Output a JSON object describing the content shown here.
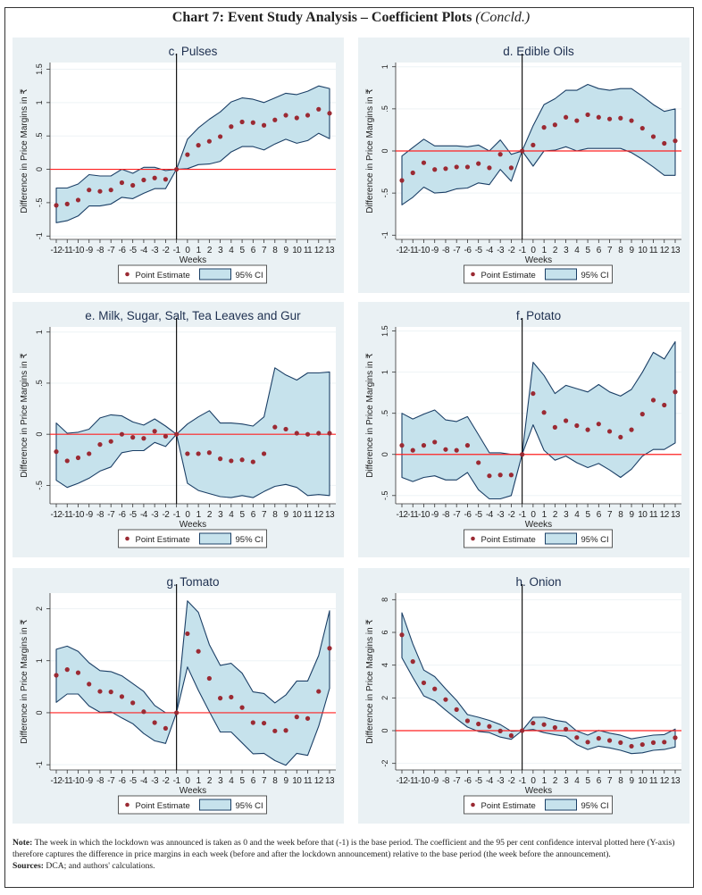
{
  "page": {
    "title": "Chart 7: Event Study Analysis – Coefficient Plots",
    "title_suffix": "(Concld.)",
    "note_label": "Note:",
    "note_text": "The week in which the lockdown was announced is taken as 0 and the week before that (-1) is the base period. The coefficient and the 95 per cent confidence interval plotted here (Y-axis) therefore captures the difference in price margins in each week (before and after the lockdown announcement) relative to the base period (the week before the announcement).",
    "sources_label": "Sources:",
    "sources_text": "DCA; and authors' calculations."
  },
  "colors": {
    "panel_bg": "#eaf1f4",
    "ci_fill": "#c6e2ec",
    "ci_line": "#1b3f66",
    "point": "#9b2a33",
    "zero_line": "#ff2020",
    "event_line": "#000000"
  },
  "chart_data": [
    {
      "type": "scatter",
      "title": "c. Pulses",
      "xlabel": "Weeks",
      "ylabel": "Difference in Price Margins in ₹",
      "x": [
        -12,
        -11,
        -10,
        -9,
        -8,
        -7,
        -6,
        -5,
        -4,
        -3,
        -2,
        -1,
        0,
        1,
        2,
        3,
        4,
        5,
        6,
        7,
        8,
        9,
        10,
        11,
        12,
        13
      ],
      "x_tick_labels": [
        "-12",
        "-11",
        "-10",
        "-9",
        "-8",
        "-7",
        "-6",
        "-5",
        "-4",
        "-3",
        "-2",
        "-1",
        "0",
        "1",
        "2",
        "3",
        "4",
        "5",
        "6",
        "7",
        "8",
        "9",
        "10",
        "11",
        "12",
        "13"
      ],
      "ylim": [
        -1.05,
        1.6
      ],
      "yticks": [
        -1,
        -0.5,
        0,
        0.5,
        1,
        1.5
      ],
      "ytick_labels": [
        "-1",
        "-.5",
        "0",
        ".5",
        "1",
        "1.5"
      ],
      "grid": true,
      "legend": [
        "Point Estimate",
        "95% CI"
      ],
      "legend_position": "bottom",
      "series": [
        {
          "name": "Point Estimate",
          "values": [
            -0.54,
            -0.52,
            -0.46,
            -0.31,
            -0.33,
            -0.31,
            -0.2,
            -0.24,
            -0.16,
            -0.13,
            -0.15,
            0,
            0.22,
            0.36,
            0.42,
            0.49,
            0.64,
            0.71,
            0.7,
            0.66,
            0.74,
            0.81,
            0.77,
            0.81,
            0.9,
            0.84
          ]
        },
        {
          "name": "95% CI upper",
          "values": [
            -0.28,
            -0.28,
            -0.22,
            -0.08,
            -0.1,
            -0.1,
            0,
            -0.06,
            0.03,
            0.03,
            -0.02,
            0,
            0.45,
            0.62,
            0.75,
            0.86,
            1.01,
            1.07,
            1.05,
            1.0,
            1.07,
            1.14,
            1.12,
            1.17,
            1.25,
            1.21
          ]
        },
        {
          "name": "95% CI lower",
          "values": [
            -0.8,
            -0.77,
            -0.7,
            -0.55,
            -0.55,
            -0.52,
            -0.42,
            -0.44,
            -0.36,
            -0.29,
            -0.29,
            0,
            0.01,
            0.07,
            0.08,
            0.12,
            0.26,
            0.34,
            0.34,
            0.29,
            0.38,
            0.45,
            0.39,
            0.43,
            0.54,
            0.46
          ]
        }
      ]
    },
    {
      "type": "scatter",
      "title": "d. Edible Oils",
      "xlabel": "Weeks",
      "ylabel": "Difference in Price Margins in ₹",
      "x": [
        -12,
        -11,
        -10,
        -9,
        -8,
        -7,
        -6,
        -5,
        -4,
        -3,
        -2,
        -1,
        0,
        1,
        2,
        3,
        4,
        5,
        6,
        7,
        8,
        9,
        10,
        11,
        12,
        13
      ],
      "x_tick_labels": [
        "-12",
        "-11",
        "-10",
        "-9",
        "-8",
        "-7",
        "-6",
        "-5",
        "-4",
        "-3",
        "-2",
        "-1",
        "0",
        "1",
        "2",
        "3",
        "4",
        "5",
        "6",
        "7",
        "8",
        "9",
        "10",
        "11",
        "12",
        "13"
      ],
      "ylim": [
        -1.05,
        1.05
      ],
      "yticks": [
        -1,
        -0.5,
        0,
        0.5,
        1
      ],
      "ytick_labels": [
        "-1",
        "-.5",
        "0",
        ".5",
        "1"
      ],
      "grid": true,
      "legend": [
        "Point Estimate",
        "95% CI"
      ],
      "legend_position": "bottom",
      "series": [
        {
          "name": "Point Estimate",
          "values": [
            -0.35,
            -0.26,
            -0.14,
            -0.22,
            -0.21,
            -0.19,
            -0.19,
            -0.15,
            -0.2,
            -0.04,
            -0.2,
            0,
            0.07,
            0.28,
            0.31,
            0.4,
            0.36,
            0.43,
            0.4,
            0.38,
            0.39,
            0.36,
            0.27,
            0.17,
            0.09,
            0.12
          ]
        },
        {
          "name": "95% CI upper",
          "values": [
            -0.06,
            0.04,
            0.14,
            0.06,
            0.06,
            0.06,
            0.05,
            0.07,
            0,
            0.13,
            -0.04,
            0,
            0.3,
            0.55,
            0.62,
            0.72,
            0.72,
            0.79,
            0.74,
            0.72,
            0.74,
            0.74,
            0.65,
            0.55,
            0.47,
            0.5
          ]
        },
        {
          "name": "95% CI lower",
          "values": [
            -0.64,
            -0.55,
            -0.43,
            -0.5,
            -0.49,
            -0.45,
            -0.44,
            -0.38,
            -0.4,
            -0.22,
            -0.36,
            0,
            -0.18,
            0,
            0.01,
            0.05,
            0,
            0.03,
            0.03,
            0.03,
            0.03,
            -0.02,
            -0.1,
            -0.19,
            -0.29,
            -0.29
          ]
        }
      ]
    },
    {
      "type": "scatter",
      "title": "e. Milk, Sugar, Salt, Tea Leaves and Gur",
      "xlabel": "Weeks",
      "ylabel": "Difference in Price Margins in ₹",
      "x": [
        -12,
        -11,
        -10,
        -9,
        -8,
        -7,
        -6,
        -5,
        -4,
        -3,
        -2,
        -1,
        0,
        1,
        2,
        3,
        4,
        5,
        6,
        7,
        8,
        9,
        10,
        11,
        12,
        13
      ],
      "x_tick_labels": [
        "-12",
        "-11",
        "-10",
        "-9",
        "-8",
        "-7",
        "-6",
        "-5",
        "-4",
        "-3",
        "-2",
        "-1",
        "0",
        "1",
        "2",
        "3",
        "4",
        "5",
        "6",
        "7",
        "8",
        "9",
        "10",
        "11",
        "12",
        "13"
      ],
      "ylim": [
        -0.68,
        1.05
      ],
      "yticks": [
        -0.5,
        0,
        0.5,
        1
      ],
      "ytick_labels": [
        "-.5",
        "0",
        ".5",
        "1"
      ],
      "grid": true,
      "legend": [
        "Point Estimate",
        "95% CI"
      ],
      "legend_position": "bottom",
      "series": [
        {
          "name": "Point Estimate",
          "values": [
            -0.17,
            -0.26,
            -0.23,
            -0.19,
            -0.1,
            -0.07,
            0,
            -0.03,
            -0.04,
            0.03,
            -0.02,
            0,
            -0.19,
            -0.19,
            -0.18,
            -0.24,
            -0.26,
            -0.25,
            -0.27,
            -0.19,
            0.07,
            0.05,
            0.01,
            0,
            0.01,
            0.01
          ]
        },
        {
          "name": "95% CI upper",
          "values": [
            0.11,
            0.01,
            0.02,
            0.05,
            0.16,
            0.19,
            0.18,
            0.12,
            0.09,
            0.15,
            0.08,
            0,
            0.1,
            0.17,
            0.23,
            0.11,
            0.11,
            0.1,
            0.08,
            0.17,
            0.65,
            0.58,
            0.53,
            0.6,
            0.6,
            0.61
          ]
        },
        {
          "name": "95% CI lower",
          "values": [
            -0.45,
            -0.52,
            -0.48,
            -0.43,
            -0.36,
            -0.32,
            -0.18,
            -0.16,
            -0.16,
            -0.08,
            -0.12,
            0,
            -0.48,
            -0.55,
            -0.58,
            -0.61,
            -0.62,
            -0.6,
            -0.62,
            -0.56,
            -0.51,
            -0.49,
            -0.52,
            -0.6,
            -0.59,
            -0.6
          ]
        }
      ]
    },
    {
      "type": "scatter",
      "title": "f. Potato",
      "xlabel": "Weeks",
      "ylabel": "Difference in Price Margins in ₹",
      "x": [
        -12,
        -11,
        -10,
        -9,
        -8,
        -7,
        -6,
        -5,
        -4,
        -3,
        -2,
        -1,
        0,
        1,
        2,
        3,
        4,
        5,
        6,
        7,
        8,
        9,
        10,
        11,
        12,
        13
      ],
      "x_tick_labels": [
        "-12",
        "-11",
        "-10",
        "-9",
        "-8",
        "-7",
        "-6",
        "-5",
        "-4",
        "-3",
        "-2",
        "-1",
        "0",
        "1",
        "2",
        "3",
        "4",
        "5",
        "6",
        "7",
        "8",
        "9",
        "10",
        "11",
        "12",
        "13"
      ],
      "ylim": [
        -0.6,
        1.55
      ],
      "yticks": [
        -0.5,
        0,
        0.5,
        1,
        1.5
      ],
      "ytick_labels": [
        "-.5",
        "0",
        ".5",
        "1",
        "1.5"
      ],
      "grid": true,
      "legend": [
        "Point Estimate",
        "95% CI"
      ],
      "legend_position": "bottom",
      "series": [
        {
          "name": "Point Estimate",
          "values": [
            0.11,
            0.05,
            0.11,
            0.15,
            0.06,
            0.05,
            0.11,
            -0.1,
            -0.26,
            -0.25,
            -0.25,
            0,
            0.74,
            0.51,
            0.33,
            0.41,
            0.35,
            0.3,
            0.37,
            0.28,
            0.21,
            0.3,
            0.49,
            0.66,
            0.6,
            0.76
          ]
        },
        {
          "name": "95% CI upper",
          "values": [
            0.5,
            0.43,
            0.49,
            0.54,
            0.42,
            0.4,
            0.46,
            0.24,
            0.02,
            0.02,
            0,
            0,
            1.12,
            0.96,
            0.74,
            0.84,
            0.8,
            0.76,
            0.85,
            0.76,
            0.71,
            0.79,
            1.0,
            1.24,
            1.16,
            1.37
          ]
        },
        {
          "name": "95% CI lower",
          "values": [
            -0.28,
            -0.33,
            -0.28,
            -0.26,
            -0.31,
            -0.31,
            -0.22,
            -0.43,
            -0.54,
            -0.54,
            -0.5,
            0,
            0.36,
            0.05,
            -0.07,
            -0.02,
            -0.1,
            -0.16,
            -0.11,
            -0.19,
            -0.28,
            -0.18,
            -0.02,
            0.06,
            0.06,
            0.14
          ]
        }
      ]
    },
    {
      "type": "scatter",
      "title": "g. Tomato",
      "xlabel": "Weeks",
      "ylabel": "Difference in Price Margins in ₹",
      "x": [
        -12,
        -11,
        -10,
        -9,
        -8,
        -7,
        -6,
        -5,
        -4,
        -3,
        -2,
        -1,
        0,
        1,
        2,
        3,
        4,
        5,
        6,
        7,
        8,
        9,
        10,
        11,
        12,
        13
      ],
      "x_tick_labels": [
        "-12",
        "-11",
        "-10",
        "-9",
        "-8",
        "-7",
        "-6",
        "-5",
        "-4",
        "-3",
        "-2",
        "-1",
        "0",
        "1",
        "2",
        "3",
        "4",
        "5",
        "6",
        "7",
        "8",
        "9",
        "10",
        "11",
        "12",
        "13"
      ],
      "ylim": [
        -1.1,
        2.3
      ],
      "yticks": [
        -1,
        0,
        1,
        2
      ],
      "ytick_labels": [
        "-1",
        "0",
        "1",
        "2"
      ],
      "grid": true,
      "legend": [
        "Point Estimate",
        "95% CI"
      ],
      "legend_position": "bottom",
      "series": [
        {
          "name": "Point Estimate",
          "values": [
            0.72,
            0.83,
            0.77,
            0.55,
            0.41,
            0.4,
            0.31,
            0.19,
            0.02,
            -0.19,
            -0.3,
            0,
            1.52,
            1.18,
            0.66,
            0.28,
            0.3,
            0.1,
            -0.19,
            -0.2,
            -0.35,
            -0.34,
            -0.08,
            -0.11,
            0.41,
            1.24
          ]
        },
        {
          "name": "95% CI upper",
          "values": [
            1.22,
            1.28,
            1.18,
            0.96,
            0.81,
            0.79,
            0.71,
            0.56,
            0.41,
            0.14,
            0,
            0,
            2.15,
            1.93,
            1.31,
            0.91,
            0.95,
            0.76,
            0.4,
            0.37,
            0.19,
            0.34,
            0.61,
            0.61,
            1.1,
            1.96
          ]
        },
        {
          "name": "95% CI lower",
          "values": [
            0.2,
            0.36,
            0.36,
            0.13,
            0.01,
            0.02,
            -0.1,
            -0.21,
            -0.4,
            -0.54,
            -0.59,
            0,
            0.88,
            0.43,
            0.02,
            -0.37,
            -0.37,
            -0.58,
            -0.79,
            -0.78,
            -0.92,
            -1.01,
            -0.78,
            -0.82,
            -0.26,
            0.47
          ]
        }
      ]
    },
    {
      "type": "scatter",
      "title": "h. Onion",
      "xlabel": "Weeks",
      "ylabel": "Difference in Price Margins in ₹",
      "x": [
        -12,
        -11,
        -10,
        -9,
        -8,
        -7,
        -6,
        -5,
        -4,
        -3,
        -2,
        -1,
        0,
        1,
        2,
        3,
        4,
        5,
        6,
        7,
        8,
        9,
        10,
        11,
        12,
        13
      ],
      "x_tick_labels": [
        "-12",
        "-11",
        "-10",
        "-9",
        "-8",
        "-7",
        "-6",
        "-5",
        "-4",
        "-3",
        "-2",
        "-1",
        "0",
        "1",
        "2",
        "3",
        "4",
        "5",
        "6",
        "7",
        "8",
        "9",
        "10",
        "11",
        "12",
        "13"
      ],
      "ylim": [
        -2.4,
        8.4
      ],
      "yticks": [
        -2,
        0,
        2,
        4,
        6,
        8
      ],
      "ytick_labels": [
        "-2",
        "0",
        "2",
        "4",
        "6",
        "8"
      ],
      "grid": true,
      "legend": [
        "Point Estimate",
        "95% CI"
      ],
      "legend_position": "bottom",
      "series": [
        {
          "name": "Point Estimate",
          "values": [
            5.85,
            4.22,
            2.92,
            2.55,
            1.9,
            1.29,
            0.6,
            0.41,
            0.26,
            -0.02,
            -0.3,
            0,
            0.46,
            0.37,
            0.19,
            0.09,
            -0.42,
            -0.7,
            -0.47,
            -0.6,
            -0.73,
            -0.95,
            -0.85,
            -0.73,
            -0.7,
            -0.43
          ]
        },
        {
          "name": "95% CI upper",
          "values": [
            7.2,
            5.3,
            3.7,
            3.3,
            2.55,
            1.85,
            0.98,
            0.82,
            0.63,
            0.37,
            -0.04,
            0,
            0.82,
            0.82,
            0.64,
            0.53,
            -0.02,
            -0.27,
            0.02,
            -0.15,
            -0.28,
            -0.5,
            -0.38,
            -0.27,
            -0.24,
            0.1
          ]
        },
        {
          "name": "95% CI lower",
          "values": [
            4.45,
            3.25,
            2.12,
            1.82,
            1.25,
            0.72,
            0.22,
            -0.05,
            -0.12,
            -0.39,
            -0.53,
            0,
            0.07,
            -0.12,
            -0.25,
            -0.35,
            -0.85,
            -1.15,
            -0.95,
            -1.05,
            -1.2,
            -1.4,
            -1.35,
            -1.2,
            -1.15,
            -1.0
          ]
        }
      ]
    }
  ]
}
